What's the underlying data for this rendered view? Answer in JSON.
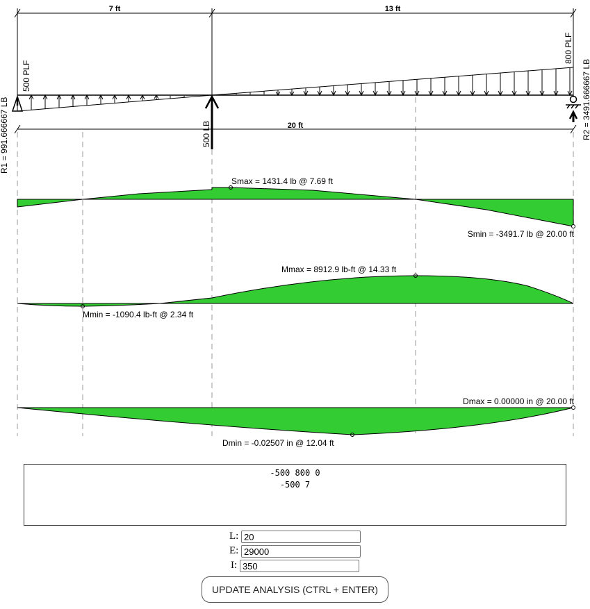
{
  "beam": {
    "span_label": "20 ft",
    "segment_labels": [
      "7 ft",
      "13 ft"
    ],
    "load_left_label": "500 PLF",
    "load_right_label": "800 PLF",
    "point_load_label": "500 LB",
    "reaction_left_label": "R1 = 991.666667 LB",
    "reaction_right_label": "R2 = 3491.666667 LB"
  },
  "shear": {
    "max_label": "Smax = 1431.4 lb @ 7.69 ft",
    "min_label": "Smin = -3491.7 lb @ 20.00 ft"
  },
  "moment": {
    "max_label": "Mmax = 8912.9 lb-ft @ 14.33 ft",
    "min_label": "Mmin = -1090.4 lb-ft @ 2.34 ft"
  },
  "deflection": {
    "max_label": "Dmax = 0.00000 in @ 20.00 ft",
    "min_label": "Dmin = -0.02507 in @ 12.04 ft"
  },
  "input": {
    "lines": [
      "-500 800 0",
      "-500 7"
    ]
  },
  "params": {
    "L_label": "L:",
    "L_value": "20",
    "E_label": "E:",
    "E_value": "29000",
    "I_label": "I:",
    "I_value": "350"
  },
  "button_label": "UPDATE ANALYSIS (CTRL + ENTER)",
  "colors": {
    "fill": "#33cc33",
    "line": "#000000",
    "dash": "#bbbbbb"
  }
}
